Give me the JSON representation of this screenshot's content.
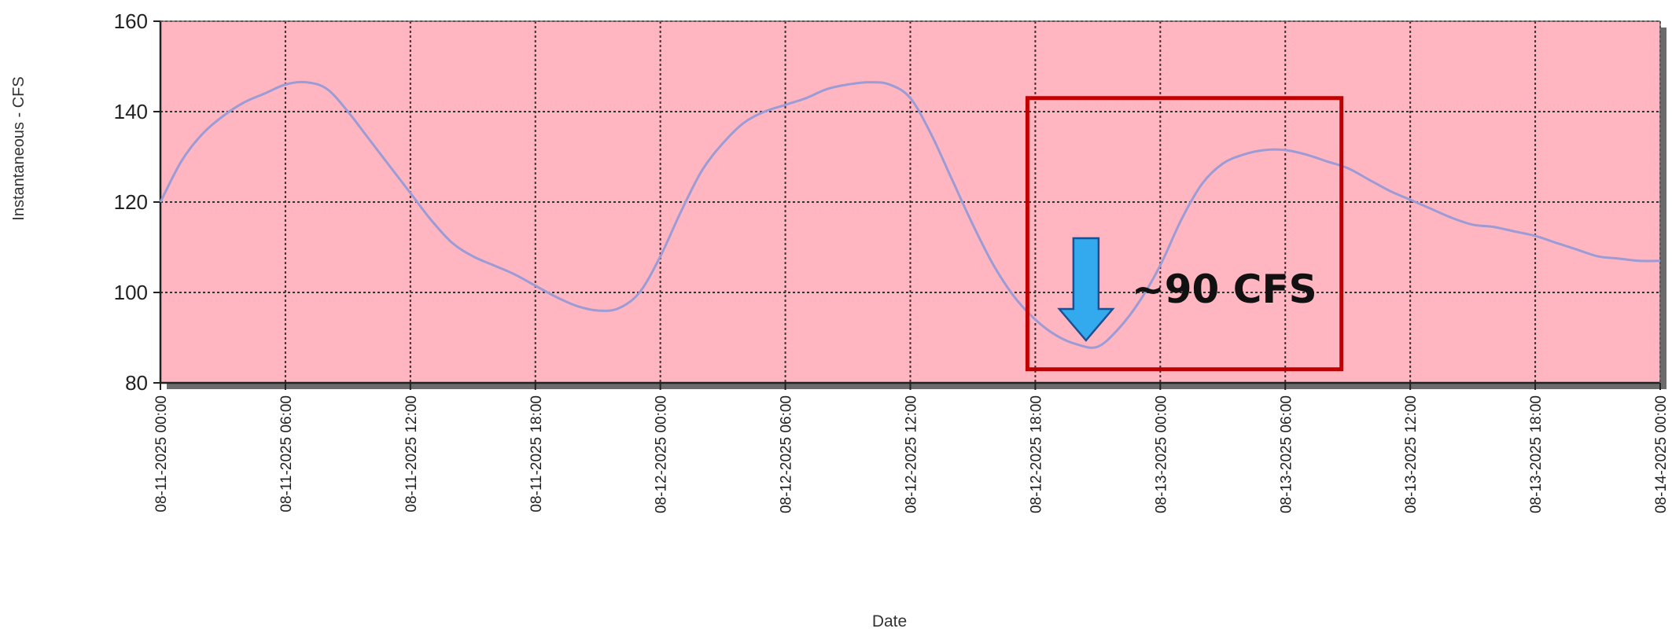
{
  "chart_data": {
    "type": "line",
    "title": "",
    "xlabel": "Date",
    "ylabel": "Instantaneous - CFS",
    "ylim": [
      80,
      160
    ],
    "yticks": [
      80,
      100,
      120,
      140,
      160
    ],
    "xlim": [
      "08-11-2025 00:00",
      "08-14-2025 00:00"
    ],
    "xticks": [
      "08-11-2025 00:00",
      "08-11-2025 06:00",
      "08-11-2025 12:00",
      "08-11-2025 18:00",
      "08-12-2025 00:00",
      "08-12-2025 06:00",
      "08-12-2025 12:00",
      "08-12-2025 18:00",
      "08-13-2025 00:00",
      "08-13-2025 06:00",
      "08-13-2025 12:00",
      "08-13-2025 18:00",
      "08-14-2025 00:00"
    ],
    "grid": true,
    "legend": "none",
    "colors": {
      "plot_bg": "#ffb6c1",
      "line": "#9b9bd6",
      "grid": "#333333",
      "highlight_box": "#c00000",
      "arrow": "#33aaee"
    },
    "series": [
      {
        "x": [
          "08-11-2025 00:00",
          "08-11-2025 01:00",
          "08-11-2025 02:00",
          "08-11-2025 03:00",
          "08-11-2025 04:00",
          "08-11-2025 05:00",
          "08-11-2025 06:00",
          "08-11-2025 07:00",
          "08-11-2025 08:00",
          "08-11-2025 09:00",
          "08-11-2025 10:00",
          "08-11-2025 11:00",
          "08-11-2025 12:00",
          "08-11-2025 13:00",
          "08-11-2025 14:00",
          "08-11-2025 15:00",
          "08-11-2025 16:00",
          "08-11-2025 17:00",
          "08-11-2025 18:00",
          "08-11-2025 19:00",
          "08-11-2025 20:00",
          "08-11-2025 21:00",
          "08-11-2025 22:00",
          "08-11-2025 23:00",
          "08-12-2025 00:00",
          "08-12-2025 01:00",
          "08-12-2025 02:00",
          "08-12-2025 03:00",
          "08-12-2025 04:00",
          "08-12-2025 05:00",
          "08-12-2025 06:00",
          "08-12-2025 07:00",
          "08-12-2025 08:00",
          "08-12-2025 09:00",
          "08-12-2025 10:00",
          "08-12-2025 11:00",
          "08-12-2025 12:00",
          "08-12-2025 13:00",
          "08-12-2025 14:00",
          "08-12-2025 15:00",
          "08-12-2025 16:00",
          "08-12-2025 17:00",
          "08-12-2025 18:00",
          "08-12-2025 19:00",
          "08-12-2025 20:00",
          "08-12-2025 21:00",
          "08-12-2025 22:00",
          "08-12-2025 23:00",
          "08-13-2025 00:00",
          "08-13-2025 01:00",
          "08-13-2025 02:00",
          "08-13-2025 03:00",
          "08-13-2025 04:00",
          "08-13-2025 05:00",
          "08-13-2025 06:00",
          "08-13-2025 07:00",
          "08-13-2025 08:00",
          "08-13-2025 09:00",
          "08-13-2025 10:00",
          "08-13-2025 11:00",
          "08-13-2025 12:00",
          "08-13-2025 13:00",
          "08-13-2025 14:00",
          "08-13-2025 15:00",
          "08-13-2025 16:00",
          "08-13-2025 17:00",
          "08-13-2025 18:00",
          "08-13-2025 19:00",
          "08-13-2025 20:00",
          "08-13-2025 21:00",
          "08-13-2025 22:00",
          "08-13-2025 23:00",
          "08-14-2025 00:00"
        ],
        "values": [
          120,
          129,
          135,
          139,
          142,
          144,
          146,
          146.5,
          145,
          140,
          134,
          128,
          122,
          116,
          111,
          108,
          106,
          104,
          101.5,
          99,
          97,
          96,
          96.5,
          100,
          108,
          118,
          127,
          133,
          137.5,
          140,
          141.5,
          143,
          145,
          146,
          146.5,
          146,
          143,
          135,
          125,
          115,
          106,
          99,
          94,
          90.5,
          88.5,
          88,
          92,
          98,
          106,
          116,
          124,
          128.5,
          130.5,
          131.5,
          131.5,
          130.5,
          129,
          127.5,
          125,
          122.5,
          120.5,
          118.5,
          116.5,
          115,
          114.5,
          113.5,
          112.5,
          111,
          109.5,
          108,
          107.5,
          107,
          107
        ]
      }
    ],
    "annotations": [
      {
        "text": "~90 CFS",
        "points_to": [
          "08-12-2025 21:00",
          88
        ]
      }
    ]
  }
}
